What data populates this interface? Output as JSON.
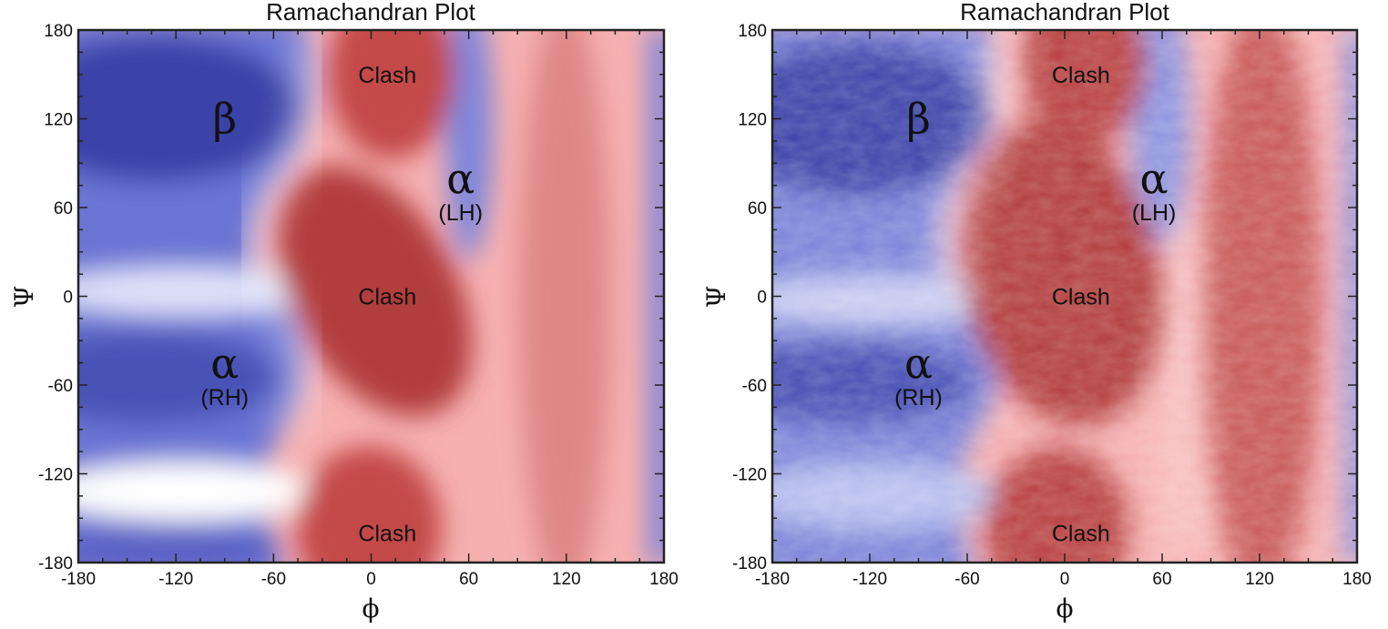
{
  "colors": {
    "favorable_deep": "#3a42a8",
    "favorable_light": "#aab4ec",
    "neutral": "#ffffff",
    "unfavorable_light": "#f6b0b0",
    "unfavorable_deep": "#b23c3c",
    "frame": "#222222"
  },
  "chart_data": [
    {
      "type": "heatmap",
      "title": "Ramachandran Plot",
      "xlabel": "ϕ",
      "ylabel": "Ψ",
      "xlim": [
        -180,
        180
      ],
      "ylim": [
        -180,
        180
      ],
      "xticks": [
        "-180",
        "-120",
        "-60",
        "0",
        "60",
        "120",
        "180"
      ],
      "yticks": [
        "180",
        "120",
        "60",
        "0",
        "-60",
        "-120",
        "-180"
      ],
      "grid": false,
      "colormap": [
        "#3a42a8",
        "#ffffff",
        "#b23c3c"
      ],
      "regions": [
        {
          "greek": "β",
          "sub": "",
          "phi": -90,
          "psi": 120
        },
        {
          "greek": "α",
          "sub": "(LH)",
          "phi": 55,
          "psi": 70
        },
        {
          "greek": "α",
          "sub": "(RH)",
          "phi": -90,
          "psi": -55
        },
        {
          "greek": "",
          "sub": "Clash",
          "phi": 10,
          "psi": 150
        },
        {
          "greek": "",
          "sub": "Clash",
          "phi": 10,
          "psi": 0
        },
        {
          "greek": "",
          "sub": "Clash",
          "phi": 10,
          "psi": -160
        }
      ]
    },
    {
      "type": "heatmap",
      "title": "Ramachandran Plot",
      "xlabel": "ϕ",
      "ylabel": "Ψ",
      "xlim": [
        -180,
        180
      ],
      "ylim": [
        -180,
        180
      ],
      "xticks": [
        "-180",
        "-120",
        "-60",
        "0",
        "60",
        "120",
        "180"
      ],
      "yticks": [
        "180",
        "120",
        "60",
        "0",
        "-60",
        "-120",
        "-180"
      ],
      "grid": false,
      "colormap": [
        "#3a42a8",
        "#ffffff",
        "#b23c3c"
      ],
      "regions": [
        {
          "greek": "β",
          "sub": "",
          "phi": -90,
          "psi": 120
        },
        {
          "greek": "α",
          "sub": "(LH)",
          "phi": 55,
          "psi": 70
        },
        {
          "greek": "α",
          "sub": "(RH)",
          "phi": -90,
          "psi": -55
        },
        {
          "greek": "",
          "sub": "Clash",
          "phi": 10,
          "psi": 150
        },
        {
          "greek": "",
          "sub": "Clash",
          "phi": 10,
          "psi": 0
        },
        {
          "greek": "",
          "sub": "Clash",
          "phi": 10,
          "psi": -160
        }
      ]
    }
  ]
}
